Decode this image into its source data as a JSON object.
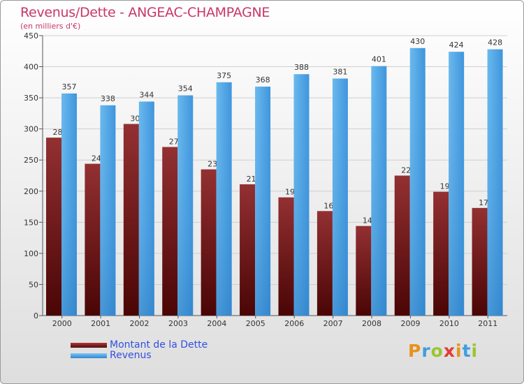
{
  "chart_data": {
    "type": "bar",
    "title": "Revenus/Dette - ANGEAC-CHAMPAGNE",
    "ylabel": "(en milliers d'€)",
    "categories": [
      "2000",
      "2001",
      "2002",
      "2003",
      "2004",
      "2005",
      "2006",
      "2007",
      "2008",
      "2009",
      "2010",
      "2011"
    ],
    "series": [
      {
        "name": "Montant de la Dette",
        "color": "#7a1f22",
        "values": [
          286,
          244,
          308,
          271,
          235,
          211,
          190,
          168,
          144,
          225,
          199,
          173
        ]
      },
      {
        "name": "Revenus",
        "color": "#4aa3e8",
        "values": [
          357,
          338,
          344,
          354,
          375,
          368,
          388,
          381,
          401,
          430,
          424,
          428
        ]
      }
    ],
    "ylim": [
      0,
      450
    ],
    "yticks": [
      0,
      50,
      100,
      150,
      200,
      250,
      300,
      350,
      400,
      450
    ],
    "grid": true,
    "legend_position": "bottom-left"
  },
  "logo": {
    "letters": [
      "P",
      "r",
      "o",
      "x",
      "i",
      "t",
      "i"
    ],
    "colors": [
      "#e8911c",
      "#3e9fdd",
      "#9ac531",
      "#e53b36",
      "#e8911c",
      "#3e9fdd",
      "#9ac531"
    ]
  }
}
